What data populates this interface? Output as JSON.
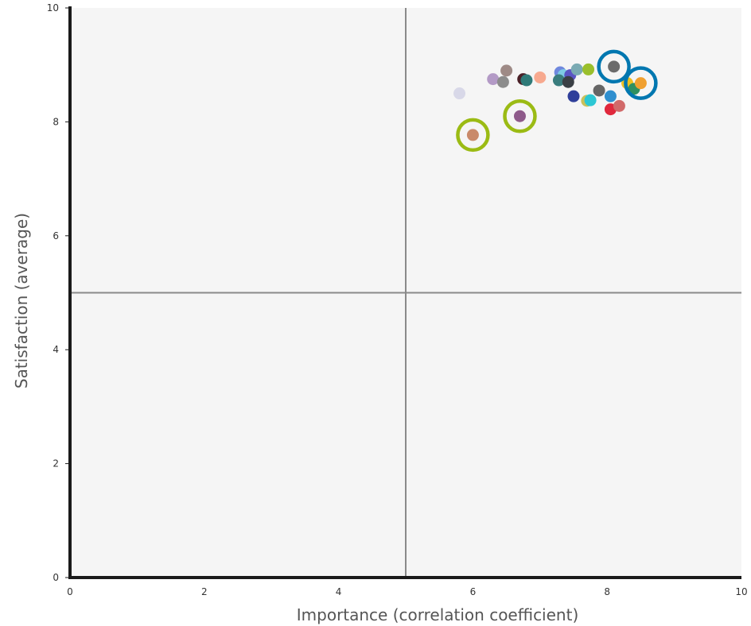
{
  "chart_data": {
    "type": "scatter",
    "xlabel": "Importance (correlation coefficient)",
    "ylabel": "Satisfaction (average)",
    "xlim": [
      0,
      10
    ],
    "ylim": [
      0,
      10
    ],
    "x_ticks": [
      "0",
      "2",
      "4",
      "6",
      "8",
      "10"
    ],
    "y_ticks": [
      "0",
      "2",
      "4",
      "6",
      "8",
      "10"
    ],
    "grid": false,
    "reference_lines": {
      "x": 5,
      "y": 5
    },
    "plot_background": "#f5f5f5",
    "points": [
      {
        "x": 5.8,
        "y": 8.5,
        "color": "#d8d8e8"
      },
      {
        "x": 6.3,
        "y": 8.75,
        "color": "#b39ac6"
      },
      {
        "x": 6.45,
        "y": 8.7,
        "color": "#8c8c8c"
      },
      {
        "x": 6.5,
        "y": 8.9,
        "color": "#9e8a86"
      },
      {
        "x": 6.75,
        "y": 8.75,
        "color": "#4a2027"
      },
      {
        "x": 6.8,
        "y": 8.73,
        "color": "#2f7a78"
      },
      {
        "x": 7.0,
        "y": 8.78,
        "color": "#f7a98f"
      },
      {
        "x": 7.3,
        "y": 8.87,
        "color": "#6f88de"
      },
      {
        "x": 7.35,
        "y": 8.82,
        "color": "#7ecbe6"
      },
      {
        "x": 7.45,
        "y": 8.82,
        "color": "#5a55c4"
      },
      {
        "x": 7.55,
        "y": 8.92,
        "color": "#7aaab3"
      },
      {
        "x": 7.28,
        "y": 8.73,
        "color": "#3a7d7e"
      },
      {
        "x": 7.42,
        "y": 8.7,
        "color": "#3a3f45"
      },
      {
        "x": 7.5,
        "y": 8.45,
        "color": "#2f3f9a"
      },
      {
        "x": 7.72,
        "y": 8.92,
        "color": "#9abf2c"
      },
      {
        "x": 7.7,
        "y": 8.37,
        "color": "#c9c15a"
      },
      {
        "x": 7.75,
        "y": 8.38,
        "color": "#2cc7d4"
      },
      {
        "x": 7.88,
        "y": 8.55,
        "color": "#656565"
      },
      {
        "x": 8.05,
        "y": 8.45,
        "color": "#2f8fcf"
      },
      {
        "x": 8.05,
        "y": 8.22,
        "color": "#e0283c"
      },
      {
        "x": 8.18,
        "y": 8.28,
        "color": "#d16a6a"
      },
      {
        "x": 8.1,
        "y": 8.97,
        "color": "#6b6b6b"
      },
      {
        "x": 8.3,
        "y": 8.68,
        "color": "#f0c020"
      },
      {
        "x": 8.4,
        "y": 8.58,
        "color": "#2f9060"
      },
      {
        "x": 8.5,
        "y": 8.68,
        "color": "#f0a030"
      },
      {
        "x": 6.7,
        "y": 8.1,
        "color": "#8e5a8a"
      },
      {
        "x": 6.0,
        "y": 7.77,
        "color": "#c98a6a"
      }
    ],
    "highlights": [
      {
        "x": 8.1,
        "y": 8.97,
        "color": "#0077b0"
      },
      {
        "x": 8.5,
        "y": 8.68,
        "color": "#0077b0"
      },
      {
        "x": 6.7,
        "y": 8.1,
        "color": "#9bbb14"
      },
      {
        "x": 6.0,
        "y": 7.77,
        "color": "#9bbb14"
      }
    ]
  }
}
